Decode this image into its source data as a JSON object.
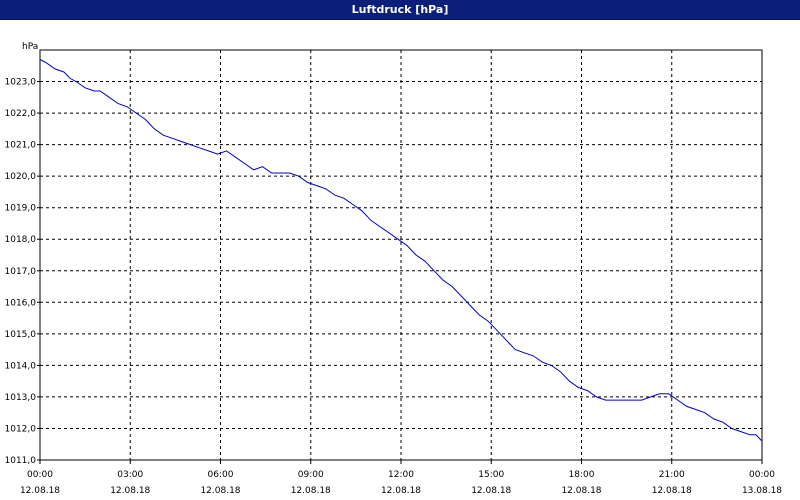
{
  "window": {
    "title": "Luftdruck [hPa]"
  },
  "chart_data": {
    "type": "line",
    "title": "Luftdruck [hPa]",
    "ylabel": "hPa",
    "xlabel": "",
    "ylim": [
      1011.0,
      1024.0
    ],
    "xlim": [
      0,
      24
    ],
    "grid": true,
    "line_color": "#0000cc",
    "y_ticks": [
      {
        "value": 1011,
        "label": "1011,0"
      },
      {
        "value": 1012,
        "label": "1012,0"
      },
      {
        "value": 1013,
        "label": "1013,0"
      },
      {
        "value": 1014,
        "label": "1014,0"
      },
      {
        "value": 1015,
        "label": "1015,0"
      },
      {
        "value": 1016,
        "label": "1016,0"
      },
      {
        "value": 1017,
        "label": "1017,0"
      },
      {
        "value": 1018,
        "label": "1018,0"
      },
      {
        "value": 1019,
        "label": "1019,0"
      },
      {
        "value": 1020,
        "label": "1020,0"
      },
      {
        "value": 1021,
        "label": "1021,0"
      },
      {
        "value": 1022,
        "label": "1022,0"
      },
      {
        "value": 1023,
        "label": "1023,0"
      }
    ],
    "x_ticks": [
      {
        "value": 0,
        "time": "00:00",
        "date": "12.08.18"
      },
      {
        "value": 3,
        "time": "03:00",
        "date": "12.08.18"
      },
      {
        "value": 6,
        "time": "06:00",
        "date": "12.08.18"
      },
      {
        "value": 9,
        "time": "09:00",
        "date": "12.08.18"
      },
      {
        "value": 12,
        "time": "12:00",
        "date": "12.08.18"
      },
      {
        "value": 15,
        "time": "15:00",
        "date": "12.08.18"
      },
      {
        "value": 18,
        "time": "18:00",
        "date": "12.08.18"
      },
      {
        "value": 21,
        "time": "21:00",
        "date": "12.08.18"
      },
      {
        "value": 24,
        "time": "00:00",
        "date": "13.08.18"
      }
    ],
    "series": [
      {
        "x": [
          0.0,
          0.2,
          0.5,
          0.8,
          1.0,
          1.2,
          1.5,
          1.8,
          2.0,
          2.3,
          2.6,
          2.9,
          3.2,
          3.5,
          3.8,
          4.1,
          4.4,
          4.7,
          5.0,
          5.3,
          5.6,
          5.9,
          6.2,
          6.5,
          6.8,
          7.1,
          7.4,
          7.7,
          8.0,
          8.3,
          8.6,
          8.9,
          9.2,
          9.5,
          9.8,
          10.1,
          10.4,
          10.7,
          11.0,
          11.3,
          11.6,
          11.9,
          12.2,
          12.5,
          12.8,
          13.1,
          13.4,
          13.7,
          14.0,
          14.3,
          14.6,
          14.9,
          15.2,
          15.5,
          15.8,
          16.1,
          16.4,
          16.7,
          17.0,
          17.3,
          17.6,
          17.9,
          18.2,
          18.5,
          18.8,
          19.1,
          19.4,
          19.7,
          20.0,
          20.3,
          20.6,
          20.9,
          21.2,
          21.5,
          21.8,
          22.1,
          22.4,
          22.7,
          23.0,
          23.3,
          23.6,
          23.8,
          24.0
        ],
        "y": [
          1023.7,
          1023.6,
          1023.4,
          1023.3,
          1023.1,
          1023.0,
          1022.8,
          1022.7,
          1022.7,
          1022.5,
          1022.3,
          1022.2,
          1022.0,
          1021.8,
          1021.5,
          1021.3,
          1021.2,
          1021.1,
          1021.0,
          1020.9,
          1020.8,
          1020.7,
          1020.8,
          1020.6,
          1020.4,
          1020.2,
          1020.3,
          1020.1,
          1020.1,
          1020.1,
          1020.0,
          1019.8,
          1019.7,
          1019.6,
          1019.4,
          1019.3,
          1019.1,
          1018.9,
          1018.6,
          1018.4,
          1018.2,
          1018.0,
          1017.8,
          1017.5,
          1017.3,
          1017.0,
          1016.7,
          1016.5,
          1016.2,
          1015.9,
          1015.6,
          1015.4,
          1015.1,
          1014.8,
          1014.5,
          1014.4,
          1014.3,
          1014.1,
          1014.0,
          1013.8,
          1013.5,
          1013.3,
          1013.2,
          1013.0,
          1012.9,
          1012.9,
          1012.9,
          1012.9,
          1012.9,
          1013.0,
          1013.1,
          1013.1,
          1012.9,
          1012.7,
          1012.6,
          1012.5,
          1012.3,
          1012.2,
          1012.0,
          1011.9,
          1011.8,
          1011.8,
          1011.6
        ]
      }
    ]
  }
}
